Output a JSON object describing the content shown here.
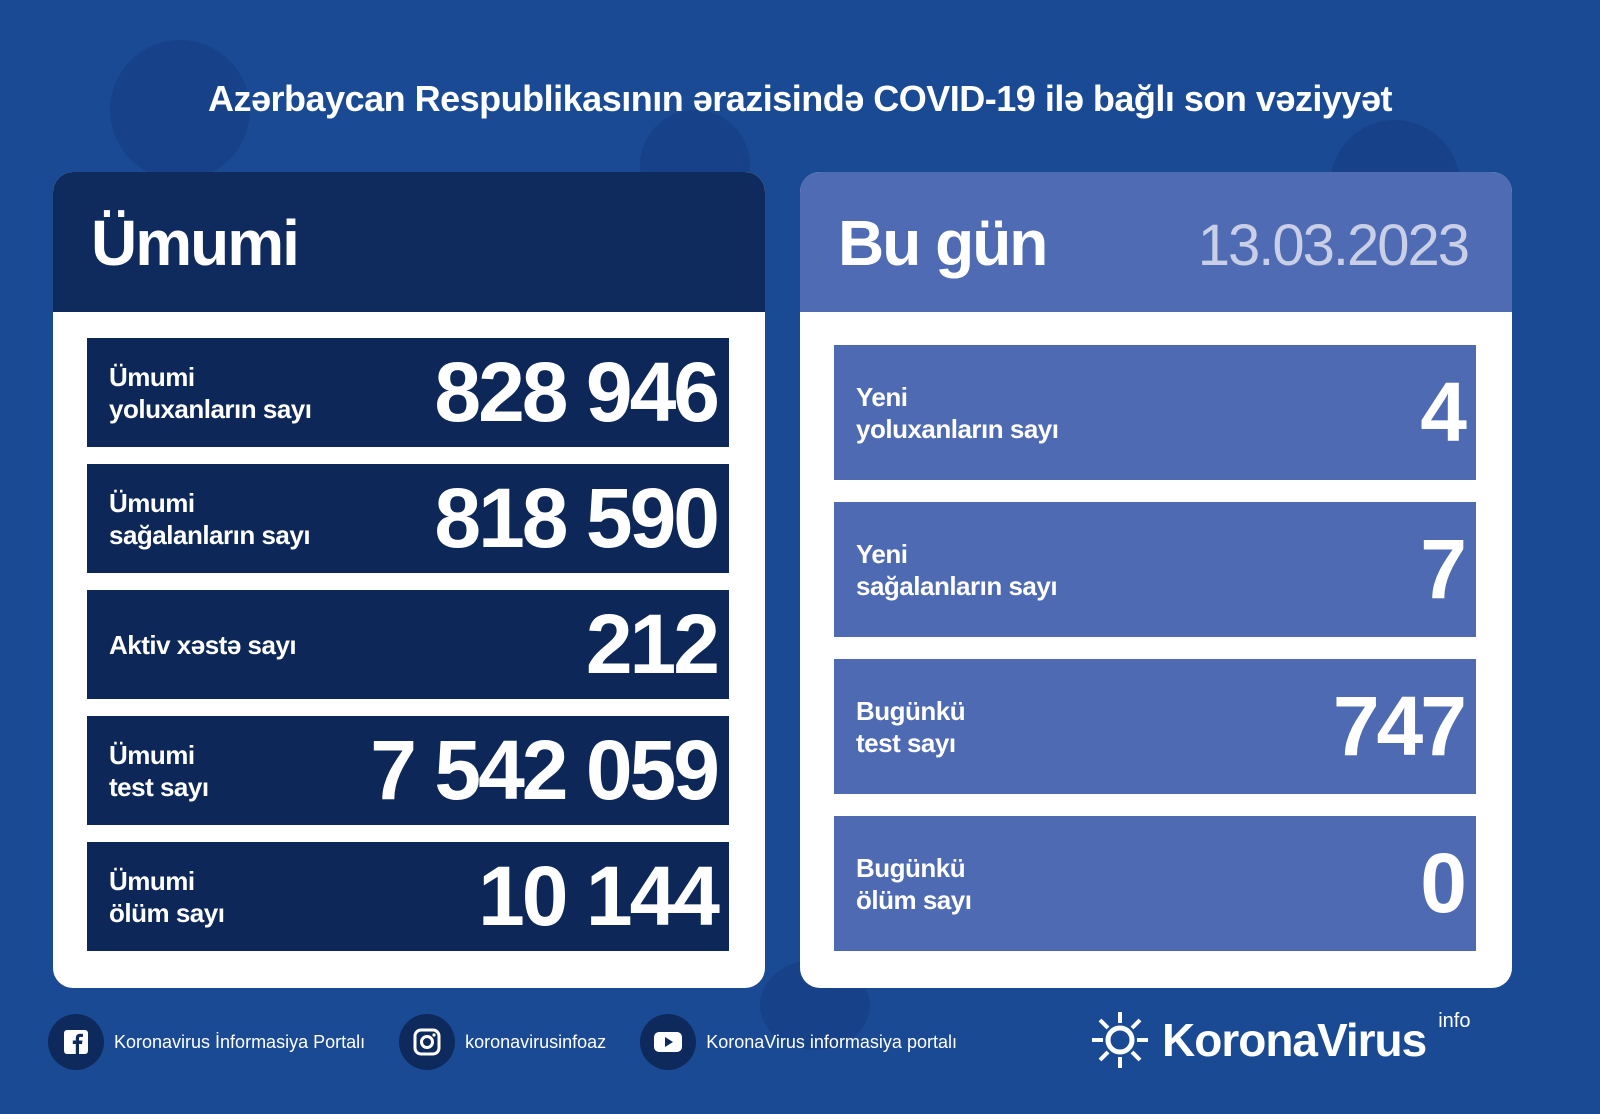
{
  "title": "Azərbaycan Respublikasının ərazisində COVID-19 ilə bağlı son vəziyyət",
  "total": {
    "heading": "Ümumi",
    "rows": [
      {
        "label1": "Ümumi",
        "label2": "yoluxanların sayı",
        "value": "828 946"
      },
      {
        "label1": "Ümumi",
        "label2": "sağalanların sayı",
        "value": "818 590"
      },
      {
        "label1": "Aktiv xəstə sayı",
        "label2": "",
        "value": "212"
      },
      {
        "label1": "Ümumi",
        "label2": "test sayı",
        "value": "7 542 059"
      },
      {
        "label1": "Ümumi",
        "label2": "ölüm sayı",
        "value": "10 144"
      }
    ]
  },
  "today": {
    "heading": "Bu gün",
    "date": "13.03.2023",
    "rows": [
      {
        "label1": "Yeni",
        "label2": "yoluxanların sayı",
        "value": "4"
      },
      {
        "label1": "Yeni",
        "label2": "sağalanların sayı",
        "value": "7"
      },
      {
        "label1": "Bugünkü",
        "label2": "test sayı",
        "value": "747"
      },
      {
        "label1": "Bugünkü",
        "label2": "ölüm sayı",
        "value": "0"
      }
    ]
  },
  "footer": {
    "facebook": "Koronavirus İnformasiya Portalı",
    "instagram": "koronavirusinfoaz",
    "youtube": "KoronaVirus informasiya portalı",
    "logo": "KoronaVirus",
    "logo_sup": "info"
  },
  "colors": {
    "background": "#1b4a95",
    "total_panel": "#0d2858",
    "today_panel": "#4d6ab3"
  }
}
